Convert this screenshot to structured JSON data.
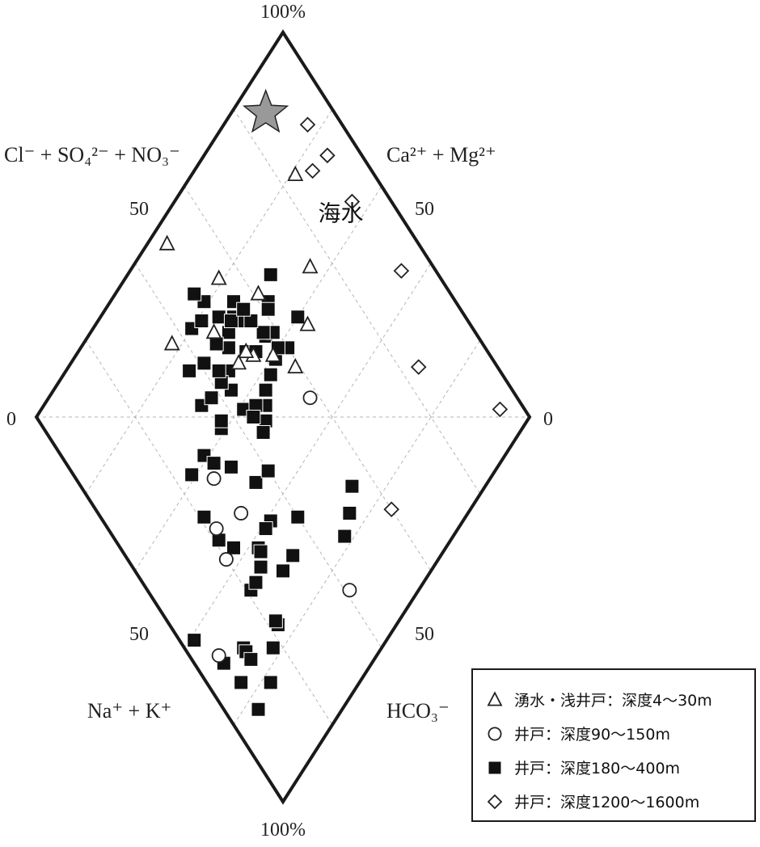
{
  "chart_data": {
    "type": "scatter",
    "diagram": "piper-diamond",
    "labels": {
      "top": "100%",
      "bottom": "100%",
      "left_zero": "0",
      "right_zero": "0",
      "upper_left_50": "50",
      "upper_right_50": "50",
      "lower_left_50": "50",
      "lower_right_50": "50",
      "anion_upper": "Cl⁻ + SO₄²⁻ + NO₃⁻",
      "cation_upper": "Ca²⁺ + Mg²⁺",
      "cation_lower": "Na⁺ + K⁺",
      "anion_lower": "HCO₃⁻"
    },
    "annotation": {
      "text": "海水",
      "u": 0.82,
      "v": 0.29
    },
    "grid": true,
    "legend_position": "bottom-right",
    "series": [
      {
        "name": "湧水・浅井戸：深度4～30m",
        "marker": "triangle-open",
        "points": [
          [
            0.59,
            0.46
          ],
          [
            0.75,
            0.36
          ],
          [
            0.84,
            0.21
          ],
          [
            0.67,
            0.43
          ],
          [
            0.56,
            0.4
          ],
          [
            0.52,
            0.36
          ],
          [
            0.51,
            0.34
          ],
          [
            0.48,
            0.34
          ],
          [
            0.47,
            0.25
          ],
          [
            0.61,
            0.29
          ],
          [
            0.55,
            0.19
          ],
          [
            0.37,
            0.18
          ],
          [
            0.49,
            0.04
          ]
        ]
      },
      {
        "name": "井戸：深度90～150m",
        "marker": "circle-open",
        "points": [
          [
            0.58,
            0.53
          ],
          [
            0.22,
            0.51
          ],
          [
            0.29,
            0.54
          ],
          [
            0.2,
            0.57
          ],
          [
            0.28,
            0.44
          ],
          [
            0.06,
            0.68
          ],
          [
            0.41,
            0.86
          ]
        ]
      },
      {
        "name": "井戸：深度180～400m",
        "marker": "square-filled",
        "points": [
          [
            0.53,
            0.27
          ],
          [
            0.57,
            0.36
          ],
          [
            0.5,
            0.28
          ],
          [
            0.62,
            0.32
          ],
          [
            0.48,
            0.3
          ],
          [
            0.49,
            0.19
          ],
          [
            0.56,
            0.41
          ],
          [
            0.56,
            0.31
          ],
          [
            0.55,
            0.25
          ],
          [
            0.43,
            0.2
          ],
          [
            0.54,
            0.29
          ],
          [
            0.66,
            0.4
          ],
          [
            0.6,
            0.42
          ],
          [
            0.5,
            0.24
          ],
          [
            0.58,
            0.4
          ],
          [
            0.61,
            0.33
          ],
          [
            0.46,
            0.21
          ],
          [
            0.59,
            0.37
          ],
          [
            0.57,
            0.35
          ],
          [
            0.53,
            0.42
          ],
          [
            0.48,
            0.16
          ],
          [
            0.56,
            0.31
          ],
          [
            0.51,
            0.34
          ],
          [
            0.46,
            0.27
          ],
          [
            0.52,
            0.27
          ],
          [
            0.56,
            0.28
          ],
          [
            0.53,
            0.36
          ],
          [
            0.41,
            0.27
          ],
          [
            0.37,
            0.25
          ],
          [
            0.43,
            0.36
          ],
          [
            0.45,
            0.33
          ],
          [
            0.35,
            0.32
          ],
          [
            0.36,
            0.39
          ],
          [
            0.42,
            0.33
          ],
          [
            0.43,
            0.41
          ],
          [
            0.43,
            0.31
          ],
          [
            0.38,
            0.33
          ],
          [
            0.37,
            0.38
          ],
          [
            0.29,
            0.39
          ],
          [
            0.46,
            0.47
          ],
          [
            0.48,
            0.45
          ],
          [
            0.5,
            0.43
          ],
          [
            0.66,
            0.29
          ],
          [
            0.46,
            0.43
          ],
          [
            0.44,
            0.44
          ],
          [
            0.24,
            0.39
          ],
          [
            0.33,
            0.46
          ],
          [
            0.21,
            0.47
          ],
          [
            0.44,
            0.48
          ],
          [
            0.3,
            0.42
          ],
          [
            0.36,
            0.53
          ],
          [
            0.4,
            0.54
          ],
          [
            0.21,
            0.53
          ],
          [
            0.23,
            0.57
          ],
          [
            0.34,
            0.61
          ],
          [
            0.32,
            0.61
          ],
          [
            0.21,
            0.66
          ],
          [
            0.28,
            0.62
          ],
          [
            0.28,
            0.63
          ],
          [
            0.26,
            0.65
          ],
          [
            0.23,
            0.66
          ],
          [
            0.4,
            0.66
          ],
          [
            0.3,
            0.7
          ],
          [
            0.12,
            0.72
          ],
          [
            0.22,
            0.76
          ],
          [
            0.34,
            0.7
          ],
          [
            0.06,
            0.7
          ],
          [
            0.07,
            0.76
          ],
          [
            0.12,
            0.73
          ],
          [
            0.07,
            0.83
          ],
          [
            0.22,
            0.75
          ],
          [
            0.12,
            0.75
          ],
          [
            0.13,
            0.82
          ],
          [
            0.51,
            0.76
          ],
          [
            0.55,
            0.73
          ],
          [
            0.47,
            0.78
          ],
          [
            0.18,
            0.78
          ],
          [
            0.03,
            0.61
          ],
          [
            0.37,
            0.25
          ]
        ]
      },
      {
        "name": "井戸：深度1200～1600m",
        "marker": "diamond-open",
        "points": [
          [
            0.93,
            0.17
          ],
          [
            0.88,
            0.24
          ],
          [
            0.93,
            0.25
          ],
          [
            0.92,
            0.36
          ],
          [
            0.93,
            0.55
          ],
          [
            0.6,
            0.84
          ],
          [
            0.84,
            0.71
          ],
          [
            0.95,
            0.93
          ]
        ]
      }
    ],
    "seawater": {
      "marker": "star",
      "u": 0.86,
      "v": 0.07
    }
  }
}
